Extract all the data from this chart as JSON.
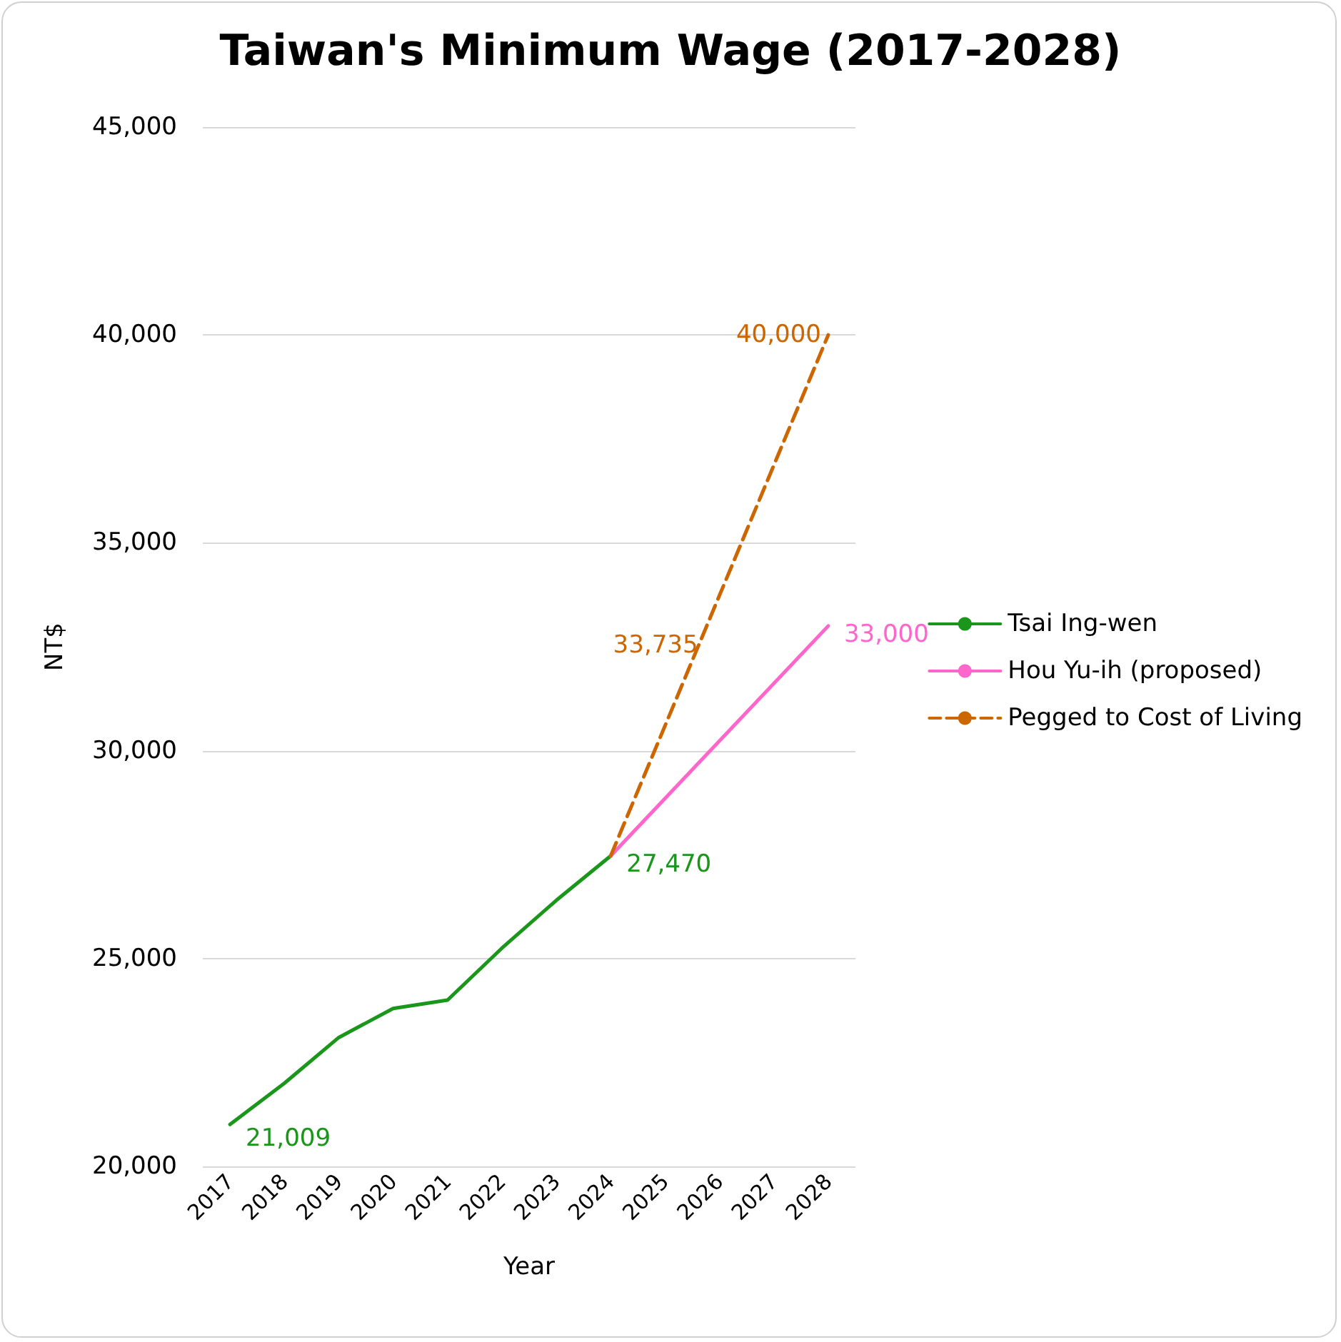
{
  "chart_data": {
    "type": "line",
    "title": "Taiwan's Minimum Wage (2017-2028)",
    "xlabel": "Year",
    "ylabel": "NT$",
    "categories": [
      "2017",
      "2018",
      "2019",
      "2020",
      "2021",
      "2022",
      "2023",
      "2024",
      "2025",
      "2026",
      "2027",
      "2028"
    ],
    "series": [
      {
        "name": "Tsai Ing-wen",
        "color": "#1a961a",
        "line_style": "solid",
        "values": [
          21009,
          22000,
          23100,
          23800,
          24000,
          25250,
          26400,
          27470,
          null,
          null,
          null,
          null
        ],
        "value_labels": [
          "21,009",
          null,
          null,
          null,
          null,
          null,
          null,
          "27,470",
          null,
          null,
          null,
          null
        ]
      },
      {
        "name": "Hou Yu-ih (proposed)",
        "color": "#ff66cc",
        "line_style": "solid",
        "values": [
          null,
          null,
          null,
          null,
          null,
          null,
          null,
          27470,
          null,
          null,
          null,
          33000
        ],
        "value_labels": [
          null,
          null,
          null,
          null,
          null,
          null,
          null,
          null,
          null,
          null,
          null,
          "33,000"
        ]
      },
      {
        "name": "Pegged to Cost of Living",
        "color": "#cc6600",
        "line_style": "dashed",
        "values": [
          null,
          null,
          null,
          null,
          null,
          null,
          null,
          27470,
          null,
          33735,
          null,
          40000
        ],
        "value_labels": [
          null,
          null,
          null,
          null,
          null,
          null,
          null,
          null,
          null,
          "33,735",
          null,
          "40,000"
        ]
      }
    ],
    "ylim": [
      20000,
      45000
    ],
    "yticks": [
      {
        "value": 20000,
        "label": "20,000"
      },
      {
        "value": 25000,
        "label": "25,000"
      },
      {
        "value": 30000,
        "label": "30,000"
      },
      {
        "value": 35000,
        "label": "35,000"
      },
      {
        "value": 40000,
        "label": "40,000"
      },
      {
        "value": 45000,
        "label": "45,000"
      }
    ],
    "grid": "y",
    "legend": "right",
    "marker": "none"
  }
}
